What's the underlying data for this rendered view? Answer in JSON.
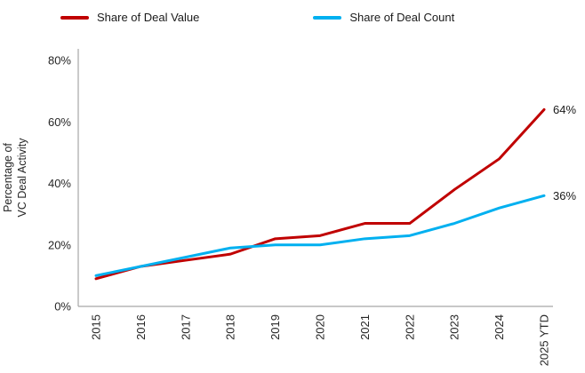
{
  "legend": {
    "items": [
      {
        "label": "Share of Deal Value",
        "color": "#c00000"
      },
      {
        "label": "Share of Deal Count",
        "color": "#00b0f0"
      }
    ]
  },
  "y_axis": {
    "label_line1": "Percentage of",
    "label_line2": "VC Deal Activity",
    "ticks": [
      "0%",
      "20%",
      "40%",
      "60%",
      "80%"
    ]
  },
  "chart_data": {
    "type": "line",
    "title": "",
    "xlabel": "",
    "ylabel": "Percentage of VC Deal Activity",
    "x": [
      "2015",
      "2016",
      "2017",
      "2018",
      "2019",
      "2020",
      "2021",
      "2022",
      "2023",
      "2024",
      "2025 YTD"
    ],
    "series": [
      {
        "name": "Share of Deal Value",
        "color": "#c00000",
        "values": [
          9,
          13,
          15,
          17,
          22,
          23,
          27,
          27,
          38,
          48,
          64
        ],
        "end_label": "64%"
      },
      {
        "name": "Share of Deal Count",
        "color": "#00b0f0",
        "values": [
          10,
          13,
          16,
          19,
          20,
          20,
          22,
          23,
          27,
          32,
          36
        ],
        "end_label": "36%"
      }
    ],
    "ylim": [
      0,
      80
    ],
    "grid": false,
    "legend_position": "top"
  }
}
